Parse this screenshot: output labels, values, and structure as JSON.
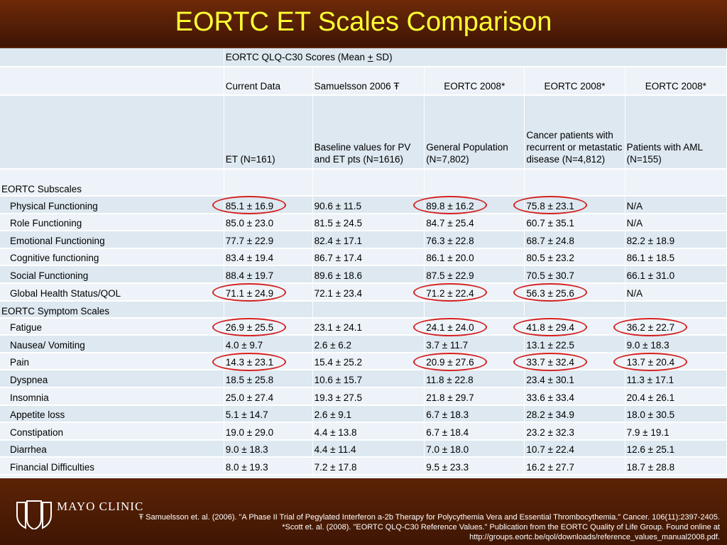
{
  "title": "EORTC ET Scales Comparison",
  "header_top": "EORTC QLQ-C30 Scores (Mean ± SD)",
  "header_top_mean": "EORTC QLQ-C30 Scores (Mean ",
  "header_top_pm": "+",
  "header_top_sd": " SD)",
  "columns": [
    "Current Data",
    "Samuelsson 2006 Ŧ",
    "EORTC 2008*",
    "EORTC 2008*",
    "EORTC 2008*"
  ],
  "subheaders": [
    "ET (N=161)",
    "Baseline values for PV and ET pts (N=1616)",
    "General Population (N=7,802)",
    "Cancer patients with recurrent or metastatic disease (N=4,812)",
    "Patients with AML (N=155)"
  ],
  "sections": [
    {
      "label": "EORTC Subscales",
      "rows": [
        {
          "name": "Physical Functioning",
          "values": [
            "85.1 ± 16.9",
            "90.6 ± 11.5",
            "89.8 ± 16.2",
            "75.8 ± 23.1",
            "N/A"
          ]
        },
        {
          "name": "Role Functioning",
          "values": [
            "85.0 ± 23.0",
            "81.5 ± 24.5",
            "84.7 ± 25.4",
            "60.7 ± 35.1",
            "N/A"
          ]
        },
        {
          "name": "Emotional Functioning",
          "values": [
            "77.7 ± 22.9",
            "82.4 ± 17.1",
            "76.3 ± 22.8",
            "68.7 ± 24.8",
            "82.2 ± 18.9"
          ]
        },
        {
          "name": "Cognitive functioning",
          "values": [
            "83.4 ± 19.4",
            "86.7 ± 17.4",
            "86.1 ± 20.0",
            "80.5 ± 23.2",
            "86.1 ± 18.5"
          ]
        },
        {
          "name": "Social Functioning",
          "values": [
            "88.4 ± 19.7",
            "89.6 ± 18.6",
            "87.5 ± 22.9",
            "70.5 ± 30.7",
            "66.1 ± 31.0"
          ]
        },
        {
          "name": "Global Health Status/QOL",
          "values": [
            "71.1 ± 24.9",
            "72.1 ± 23.4",
            "71.2 ± 22.4",
            "56.3 ± 25.6",
            "N/A"
          ]
        }
      ]
    },
    {
      "label": "EORTC Symptom Scales",
      "rows": [
        {
          "name": "Fatigue",
          "values": [
            "26.9 ± 25.5",
            "23.1 ± 24.1",
            "24.1 ± 24.0",
            "41.8 ± 29.4",
            "36.2 ± 22.7"
          ]
        },
        {
          "name": "Nausea/ Vomiting",
          "values": [
            "4.0 ± 9.7",
            "2.6 ± 6.2",
            "3.7 ± 11.7",
            "13.1 ± 22.5",
            "9.0 ± 18.3"
          ]
        },
        {
          "name": "Pain",
          "values": [
            "14.3 ± 23.1",
            "15.4 ± 25.2",
            "20.9 ± 27.6",
            "33.7 ± 32.4",
            "13.7 ± 20.4"
          ]
        },
        {
          "name": "Dyspnea",
          "values": [
            "18.5 ± 25.8",
            "10.6 ± 15.7",
            "11.8 ± 22.8",
            "23.4 ± 30.1",
            "11.3 ± 17.1"
          ]
        },
        {
          "name": "Insomnia",
          "values": [
            "25.0 ± 27.4",
            "19.3 ± 27.5",
            "21.8 ± 29.7",
            "33.6 ± 33.4",
            "20.4 ± 26.1"
          ]
        },
        {
          "name": "Appetite loss",
          "values": [
            "5.1 ± 14.7",
            "2.6 ± 9.1",
            "6.7 ± 18.3",
            "28.2 ± 34.9",
            "18.0 ± 30.5"
          ]
        },
        {
          "name": "Constipation",
          "values": [
            "19.0 ± 29.0",
            "4.4 ± 13.8",
            "6.7 ± 18.4",
            "23.2 ± 32.3",
            "7.9 ± 19.1"
          ]
        },
        {
          "name": "Diarrhea",
          "values": [
            "9.0 ± 18.3",
            "4.4 ± 11.4",
            "7.0 ± 18.0",
            "10.7 ± 22.4",
            "12.6 ± 25.1"
          ]
        },
        {
          "name": "Financial Difficulties",
          "values": [
            "8.0 ± 19.3",
            "7.2 ± 17.8",
            "9.5 ± 23.3",
            "16.2 ± 27.7",
            "18.7 ± 28.8"
          ]
        }
      ]
    }
  ],
  "highlight_color": "#d42020",
  "title_color": "#ffff33",
  "logo_text": "MAYO CLINIC",
  "references": [
    "Ŧ Samuelsson et. al. (2006). \"A Phase II Trial of Pegylated Interferon a-2b Therapy for Polycythemia Vera and Essential Thrombocythemia.\" Cancer. 106(11):2397-2405.",
    "*Scott et. al. (2008). \"EORTC QLQ-C30 Reference Values.\" Publication from the EORTC Quality of Life Group. Found online at",
    "http://groups.eortc.be/qol/downloads/reference_values_manual2008.pdf."
  ]
}
